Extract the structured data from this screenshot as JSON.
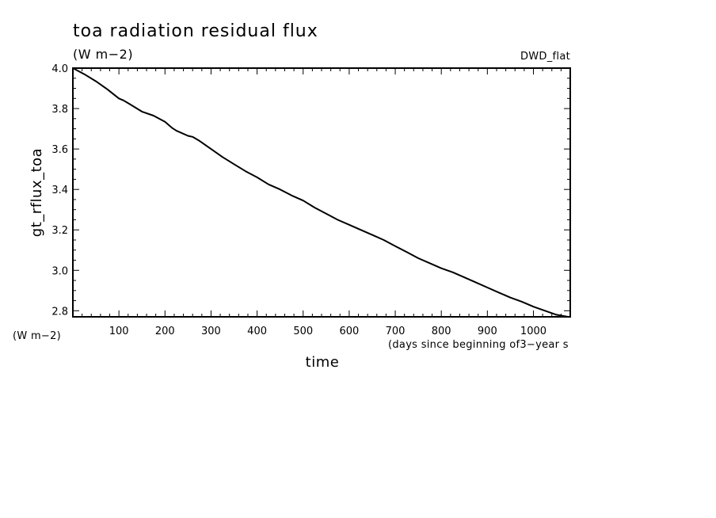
{
  "chart_data": {
    "type": "line",
    "title": "toa radiation residual flux",
    "subtitle": "(W m−2)",
    "experiment_label": "DWD_flat",
    "xlabel": "time",
    "xunits": "(days since beginning of3−year s",
    "ylabel": "gt_rflux_toa",
    "yunits": "(W m−2)",
    "xlim": [
      0,
      1080
    ],
    "ylim": [
      2.77,
      4.0
    ],
    "x_ticks": [
      100,
      200,
      300,
      400,
      500,
      600,
      700,
      800,
      900,
      1000
    ],
    "x_tick_labels": [
      "100",
      "200",
      "300",
      "400",
      "500",
      "600",
      "700",
      "800",
      "900",
      "1000"
    ],
    "y_ticks": [
      2.8,
      3.0,
      3.2,
      3.4,
      3.6,
      3.8,
      4.0
    ],
    "y_tick_labels": [
      "2.8",
      "3.0",
      "3.2",
      "3.4",
      "3.6",
      "3.8",
      "4.0"
    ],
    "grid": false,
    "legend": "none",
    "line_color": "#000000",
    "series": [
      {
        "x": [
          0,
          25,
          50,
          75,
          100,
          110,
          125,
          150,
          175,
          200,
          215,
          225,
          250,
          260,
          275,
          300,
          325,
          350,
          375,
          400,
          425,
          450,
          475,
          500,
          525,
          550,
          575,
          600,
          625,
          650,
          675,
          700,
          725,
          750,
          775,
          800,
          825,
          850,
          875,
          900,
          925,
          950,
          975,
          1000,
          1025,
          1050,
          1075
        ],
        "values": [
          4.0,
          3.97,
          3.935,
          3.895,
          3.85,
          3.84,
          3.82,
          3.785,
          3.765,
          3.735,
          3.705,
          3.69,
          3.665,
          3.66,
          3.64,
          3.6,
          3.56,
          3.525,
          3.49,
          3.46,
          3.425,
          3.4,
          3.37,
          3.345,
          3.31,
          3.28,
          3.25,
          3.225,
          3.2,
          3.175,
          3.15,
          3.12,
          3.09,
          3.06,
          3.035,
          3.01,
          2.99,
          2.965,
          2.94,
          2.915,
          2.89,
          2.865,
          2.845,
          2.82,
          2.8,
          2.78,
          2.77
        ]
      }
    ]
  }
}
